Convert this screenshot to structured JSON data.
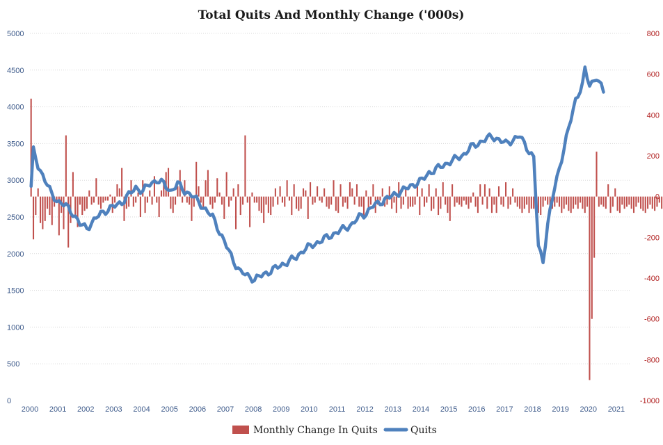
{
  "chart_data": {
    "type": "bar+line",
    "title": "Total Quits And Monthly Change ('000s)",
    "colors": {
      "bars": "#c0504d",
      "line": "#4f81bd",
      "left_axis_text": "#3d5a8a",
      "right_axis_text": "#b01e1e"
    },
    "left_axis": {
      "min": 0,
      "max": 5000,
      "ticks": [
        "0",
        "500",
        "1000",
        "1500",
        "2000",
        "2500",
        "3000",
        "3500",
        "4000",
        "4500",
        "5000"
      ]
    },
    "right_axis": {
      "min": -1000,
      "max": 800,
      "ticks": [
        "-1000",
        "-800",
        "-600",
        "-400",
        "-200",
        "0",
        "200",
        "400",
        "600",
        "800"
      ]
    },
    "x_ticks": [
      "2000",
      "2001",
      "2002",
      "2003",
      "2004",
      "2005",
      "2006",
      "2007",
      "2008",
      "2009",
      "2010",
      "2011",
      "2012",
      "2013",
      "2014",
      "2015",
      "2016",
      "2017",
      "2018",
      "2019",
      "2020",
      "2021"
    ],
    "legend": [
      {
        "name": "Monthly Change In Quits",
        "kind": "bar"
      },
      {
        "name": "Quits",
        "kind": "line"
      }
    ],
    "grid": true,
    "start_year": 2000,
    "quits_anchors": [
      [
        0,
        2900
      ],
      [
        1,
        3400
      ],
      [
        3,
        3200
      ],
      [
        6,
        3000
      ],
      [
        9,
        2800
      ],
      [
        12,
        2700
      ],
      [
        15,
        2650
      ],
      [
        18,
        2550
      ],
      [
        21,
        2400
      ],
      [
        24,
        2350
      ],
      [
        27,
        2450
      ],
      [
        30,
        2550
      ],
      [
        33,
        2600
      ],
      [
        36,
        2650
      ],
      [
        39,
        2700
      ],
      [
        42,
        2800
      ],
      [
        45,
        2900
      ],
      [
        48,
        2850
      ],
      [
        51,
        2950
      ],
      [
        54,
        3000
      ],
      [
        57,
        2950
      ],
      [
        60,
        2850
      ],
      [
        63,
        2950
      ],
      [
        66,
        2850
      ],
      [
        69,
        2800
      ],
      [
        72,
        2700
      ],
      [
        75,
        2600
      ],
      [
        78,
        2500
      ],
      [
        81,
        2300
      ],
      [
        84,
        2100
      ],
      [
        87,
        1900
      ],
      [
        90,
        1750
      ],
      [
        93,
        1700
      ],
      [
        96,
        1650
      ],
      [
        99,
        1700
      ],
      [
        102,
        1750
      ],
      [
        105,
        1800
      ],
      [
        108,
        1850
      ],
      [
        111,
        1900
      ],
      [
        114,
        1950
      ],
      [
        117,
        2050
      ],
      [
        120,
        2100
      ],
      [
        123,
        2150
      ],
      [
        126,
        2200
      ],
      [
        129,
        2250
      ],
      [
        132,
        2300
      ],
      [
        135,
        2350
      ],
      [
        138,
        2400
      ],
      [
        141,
        2500
      ],
      [
        144,
        2550
      ],
      [
        147,
        2650
      ],
      [
        150,
        2700
      ],
      [
        153,
        2750
      ],
      [
        156,
        2800
      ],
      [
        159,
        2850
      ],
      [
        162,
        2900
      ],
      [
        165,
        2950
      ],
      [
        168,
        3000
      ],
      [
        171,
        3100
      ],
      [
        174,
        3150
      ],
      [
        177,
        3200
      ],
      [
        180,
        3250
      ],
      [
        183,
        3300
      ],
      [
        186,
        3350
      ],
      [
        189,
        3450
      ],
      [
        192,
        3500
      ],
      [
        195,
        3550
      ],
      [
        198,
        3600
      ],
      [
        201,
        3550
      ],
      [
        204,
        3500
      ],
      [
        207,
        3550
      ],
      [
        210,
        3600
      ],
      [
        213,
        3450
      ],
      [
        216,
        3300
      ],
      [
        218,
        2100
      ],
      [
        220,
        1900
      ],
      [
        222,
        2400
      ],
      [
        225,
        2900
      ],
      [
        228,
        3300
      ],
      [
        231,
        3700
      ],
      [
        234,
        4100
      ],
      [
        237,
        4300
      ],
      [
        238,
        4500
      ],
      [
        240,
        4300
      ],
      [
        243,
        4400
      ],
      [
        246,
        4200
      ]
    ],
    "change_values": [
      480,
      -210,
      -90,
      40,
      -130,
      -160,
      -120,
      -60,
      -90,
      -140,
      -50,
      -30,
      -190,
      -80,
      -160,
      300,
      -250,
      -130,
      120,
      -100,
      -150,
      -40,
      -90,
      -70,
      -60,
      30,
      -40,
      -30,
      90,
      -40,
      -60,
      -30,
      -20,
      -20,
      10,
      -80,
      -30,
      60,
      40,
      140,
      -120,
      -60,
      -50,
      80,
      -50,
      -30,
      20,
      -100,
      80,
      -80,
      -30,
      30,
      -40,
      100,
      -30,
      -100,
      30,
      80,
      120,
      140,
      -60,
      -80,
      -40,
      50,
      130,
      -30,
      80,
      -30,
      -40,
      -120,
      -50,
      170,
      50,
      -30,
      -60,
      80,
      130,
      -40,
      -60,
      -30,
      90,
      20,
      -40,
      -110,
      120,
      -50,
      -20,
      40,
      -160,
      60,
      -90,
      -40,
      300,
      -30,
      -150,
      20,
      -30,
      -30,
      -70,
      -80,
      -130,
      -40,
      -80,
      -90,
      -50,
      40,
      -40,
      50,
      -30,
      -50,
      80,
      -20,
      -90,
      60,
      -60,
      -70,
      -60,
      40,
      30,
      -110,
      70,
      -40,
      -30,
      50,
      -20,
      -30,
      40,
      -50,
      -60,
      -40,
      80,
      -70,
      -80,
      60,
      -50,
      -30,
      -60,
      70,
      40,
      -40,
      60,
      -50,
      -50,
      -100,
      30,
      -70,
      -40,
      60,
      -80,
      -40,
      -20,
      40,
      -50,
      -40,
      50,
      -60,
      -30,
      -80,
      70,
      -60,
      -40,
      40,
      -60,
      -50,
      -50,
      -40,
      60,
      -90,
      40,
      -50,
      -30,
      60,
      -70,
      -60,
      40,
      -90,
      -60,
      70,
      -40,
      -80,
      -120,
      60,
      -50,
      -30,
      -40,
      -50,
      -20,
      -40,
      -60,
      -30,
      20,
      -50,
      -80,
      60,
      -40,
      60,
      -60,
      40,
      -80,
      -40,
      -80,
      50,
      -40,
      -50,
      70,
      -60,
      -40,
      40,
      -30,
      -50,
      -60,
      -80,
      -60,
      -40,
      -80,
      -60,
      -60,
      -60,
      -80,
      -90,
      -50,
      -20,
      -40,
      -60,
      -60,
      -50,
      -30,
      -50,
      -80,
      -60,
      -40,
      -70,
      -80,
      -60,
      -40,
      -60,
      -30,
      -60,
      -80,
      -50,
      -900,
      -600,
      -300,
      220,
      -50,
      -40,
      -50,
      -60,
      60,
      -80,
      -50,
      40,
      -70,
      -80,
      -40,
      -60,
      -50,
      -40,
      -60,
      -80,
      -50,
      -30,
      -60,
      -70,
      -80,
      -60,
      -40,
      -60,
      -70,
      -50,
      -30,
      -60,
      -40,
      -50
    ]
  }
}
